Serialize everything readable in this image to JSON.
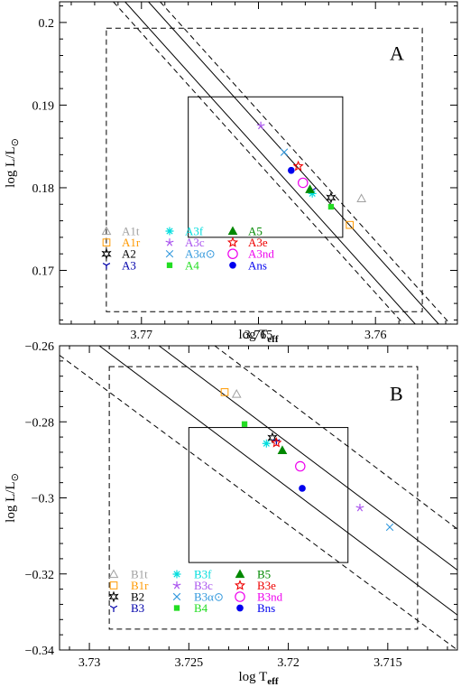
{
  "chart_data": [
    {
      "panel_label": "A",
      "type": "scatter",
      "xlabel_main": "log T",
      "xlabel_sub": "eff",
      "ylabel_main": "log L/L",
      "ylabel_sun": "⊙",
      "xlim": [
        3.7735,
        3.7565
      ],
      "ylim": [
        0.1635,
        0.2025
      ],
      "x_ticks": [
        3.77,
        3.765,
        3.76
      ],
      "x_tick_labels": [
        "3.77",
        "3.765",
        "3.76"
      ],
      "y_ticks": [
        0.17,
        0.18,
        0.19,
        0.2
      ],
      "y_tick_labels": [
        "0.17",
        "0.18",
        "0.19",
        "0.2"
      ],
      "outer_box": {
        "x": [
          3.7715,
          3.758
        ],
        "y": [
          0.165,
          0.1993
        ]
      },
      "inner_box": {
        "x": [
          3.768,
          3.7614
        ],
        "y": [
          0.174,
          0.191
        ]
      },
      "solid_lines": [
        {
          "x": [
            3.7707,
            3.7583
          ],
          "y": [
            0.2025,
            0.1635
          ]
        },
        {
          "x": [
            3.7697,
            3.7573
          ],
          "y": [
            0.2025,
            0.1635
          ]
        }
      ],
      "dashed_lines": [
        {
          "x": [
            3.7712,
            3.7588
          ],
          "y": [
            0.2025,
            0.1635
          ]
        },
        {
          "x": [
            3.7692,
            3.7568
          ],
          "y": [
            0.2025,
            0.1635
          ]
        }
      ],
      "points": [
        {
          "name": "A1t",
          "x": 3.7606,
          "y": 0.1787,
          "marker": "triangle",
          "color": "#a0a0a0"
        },
        {
          "name": "A1r",
          "x": 3.7611,
          "y": 0.1755,
          "marker": "square",
          "color": "#ff9900"
        },
        {
          "name": "A2",
          "x": 3.7619,
          "y": 0.1788,
          "marker": "star6",
          "color": "#000000"
        },
        {
          "name": "A3",
          "x": 3.7627,
          "y": 0.1797,
          "marker": "tripod",
          "color": "#0000aa"
        },
        {
          "name": "A3f",
          "x": 3.7627,
          "y": 0.1793,
          "marker": "asterisk",
          "color": "#00dddd"
        },
        {
          "name": "A3c",
          "x": 3.7649,
          "y": 0.1875,
          "marker": "star",
          "color": "#aa55ee"
        },
        {
          "name": "A3α⊙",
          "x": 3.7639,
          "y": 0.1843,
          "marker": "cross",
          "color": "#3399dd"
        },
        {
          "name": "A4",
          "x": 3.7619,
          "y": 0.1777,
          "marker": "fsquare",
          "color": "#22dd22"
        },
        {
          "name": "A5",
          "x": 3.7628,
          "y": 0.1798,
          "marker": "ftriangle",
          "color": "#008800"
        },
        {
          "name": "A3e",
          "x": 3.7633,
          "y": 0.1826,
          "marker": "star5",
          "color": "#ee0000"
        },
        {
          "name": "A3nd",
          "x": 3.7631,
          "y": 0.1806,
          "marker": "circle",
          "color": "#ee00ee"
        },
        {
          "name": "Ans",
          "x": 3.7636,
          "y": 0.1821,
          "marker": "fcircle",
          "color": "#0000ee"
        }
      ]
    },
    {
      "panel_label": "B",
      "type": "scatter",
      "xlabel_main": "log T",
      "xlabel_sub": "eff",
      "ylabel_main": "log L/L",
      "ylabel_sun": "⊙",
      "xlim": [
        3.7315,
        3.7115
      ],
      "ylim": [
        -0.34,
        -0.26
      ],
      "x_ticks": [
        3.73,
        3.725,
        3.72,
        3.715
      ],
      "x_tick_labels": [
        "3.73",
        "3.725",
        "3.72",
        "3.715"
      ],
      "y_ticks": [
        -0.34,
        -0.32,
        -0.3,
        -0.28,
        -0.26
      ],
      "y_tick_labels": [
        "−0.34",
        "−0.32",
        "−0.3",
        "−0.28",
        "−0.26"
      ],
      "outer_box": {
        "x": [
          3.729,
          3.7135
        ],
        "y": [
          -0.3345,
          -0.2655
        ]
      },
      "inner_box": {
        "x": [
          3.725,
          3.717
        ],
        "y": [
          -0.317,
          -0.2815
        ]
      },
      "solid_lines": [
        {
          "x": [
            3.7295,
            3.7115
          ],
          "y": [
            -0.26,
            -0.3308
          ]
        },
        {
          "x": [
            3.7265,
            3.7115
          ],
          "y": [
            -0.26,
            -0.319
          ]
        }
      ],
      "dashed_lines": [
        {
          "x": [
            3.7315,
            3.7115
          ],
          "y": [
            -0.2625,
            -0.34
          ]
        },
        {
          "x": [
            3.7237,
            3.7115
          ],
          "y": [
            -0.26,
            -0.3082
          ]
        }
      ],
      "points": [
        {
          "name": "B1t",
          "x": 3.7226,
          "y": -0.2727,
          "marker": "triangle",
          "color": "#a0a0a0"
        },
        {
          "name": "B1r",
          "x": 3.7232,
          "y": -0.2722,
          "marker": "square",
          "color": "#ff9900"
        },
        {
          "name": "B2",
          "x": 3.7208,
          "y": -0.2842,
          "marker": "star6",
          "color": "#000000"
        },
        {
          "name": "B3",
          "x": 3.7206,
          "y": -0.2852,
          "marker": "tripod",
          "color": "#0000aa"
        },
        {
          "name": "B3f",
          "x": 3.7211,
          "y": -0.2857,
          "marker": "asterisk",
          "color": "#00dddd"
        },
        {
          "name": "B3c",
          "x": 3.7164,
          "y": -0.3026,
          "marker": "star",
          "color": "#aa55ee"
        },
        {
          "name": "B3α⊙",
          "x": 3.7149,
          "y": -0.3077,
          "marker": "cross",
          "color": "#3399dd"
        },
        {
          "name": "B4",
          "x": 3.7222,
          "y": -0.2806,
          "marker": "fsquare",
          "color": "#22dd22"
        },
        {
          "name": "B5",
          "x": 3.7203,
          "y": -0.2875,
          "marker": "ftriangle",
          "color": "#008800"
        },
        {
          "name": "B3e",
          "x": 3.7206,
          "y": -0.2855,
          "marker": "star5",
          "color": "#ee0000"
        },
        {
          "name": "B3nd",
          "x": 3.7194,
          "y": -0.2917,
          "marker": "circle",
          "color": "#ee00ee"
        },
        {
          "name": "Bns",
          "x": 3.7193,
          "y": -0.2975,
          "marker": "fcircle",
          "color": "#0000ee"
        }
      ]
    }
  ]
}
